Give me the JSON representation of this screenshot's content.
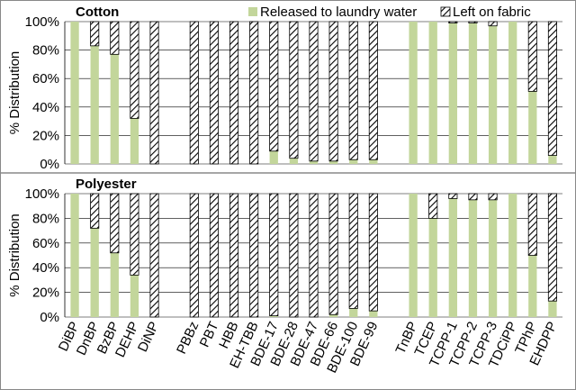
{
  "colors": {
    "released": "#c3d69b",
    "left": "#ffffff",
    "stroke": "#000000",
    "grid": "#000000"
  },
  "chart_data": [
    {
      "type": "bar",
      "stacked": true,
      "title": "Cotton",
      "ylabel": "% Distribution",
      "ylim": [
        0,
        100
      ],
      "yticks": [
        "0%",
        "20%",
        "40%",
        "60%",
        "80%",
        "100%"
      ],
      "legend": {
        "position": "top-right",
        "entries": [
          "Released to laundry water",
          "Left on fabric"
        ]
      },
      "categories": [
        "DiBP",
        "DnBP",
        "BzBP",
        "DEHP",
        "DiNP",
        "",
        "PBBz",
        "PBT",
        "HBB",
        "EH-TBB",
        "BDE-17",
        "BDE-28",
        "BDE-47",
        "BDE-66",
        "BDE-100",
        "BDE-99",
        "",
        "TnBP",
        "TCEP",
        "TCPP-1",
        "TCPP-2",
        "TCPP-3",
        "TDCiPP",
        "TPhP",
        "EHDPP"
      ],
      "series": [
        {
          "name": "Released to laundry water",
          "values": [
            100,
            83,
            77,
            32,
            0,
            null,
            0,
            0,
            0,
            0,
            9,
            4,
            2,
            2,
            3,
            3,
            null,
            100,
            100,
            99,
            99,
            97,
            100,
            51,
            6
          ]
        },
        {
          "name": "Left on fabric",
          "values": [
            0,
            17,
            23,
            68,
            100,
            null,
            100,
            100,
            100,
            100,
            91,
            96,
            98,
            98,
            97,
            97,
            null,
            0,
            0,
            1,
            1,
            3,
            0,
            49,
            94
          ]
        }
      ]
    },
    {
      "type": "bar",
      "stacked": true,
      "title": "Polyester",
      "ylabel": "% Distribution",
      "ylim": [
        0,
        100
      ],
      "yticks": [
        "0%",
        "20%",
        "40%",
        "60%",
        "80%",
        "100%"
      ],
      "categories": [
        "DiBP",
        "DnBP",
        "BzBP",
        "DEHP",
        "DiNP",
        "",
        "PBBz",
        "PBT",
        "HBB",
        "EH-TBB",
        "BDE-17",
        "BDE-28",
        "BDE-47",
        "BDE-66",
        "BDE-100",
        "BDE-99",
        "",
        "TnBP",
        "TCEP",
        "TCPP-1",
        "TCPP-2",
        "TCPP-3",
        "TDCiPP",
        "TPhP",
        "EHDPP"
      ],
      "series": [
        {
          "name": "Released to laundry water",
          "values": [
            100,
            72,
            52,
            34,
            0,
            null,
            0,
            0,
            0,
            0,
            1,
            0,
            0,
            2,
            7,
            5,
            null,
            100,
            80,
            96,
            95,
            95,
            100,
            50,
            13
          ]
        },
        {
          "name": "Left on fabric",
          "values": [
            0,
            28,
            48,
            66,
            100,
            null,
            100,
            100,
            100,
            100,
            99,
            100,
            100,
            98,
            93,
            95,
            null,
            0,
            20,
            4,
            5,
            5,
            0,
            50,
            87
          ]
        }
      ]
    }
  ]
}
